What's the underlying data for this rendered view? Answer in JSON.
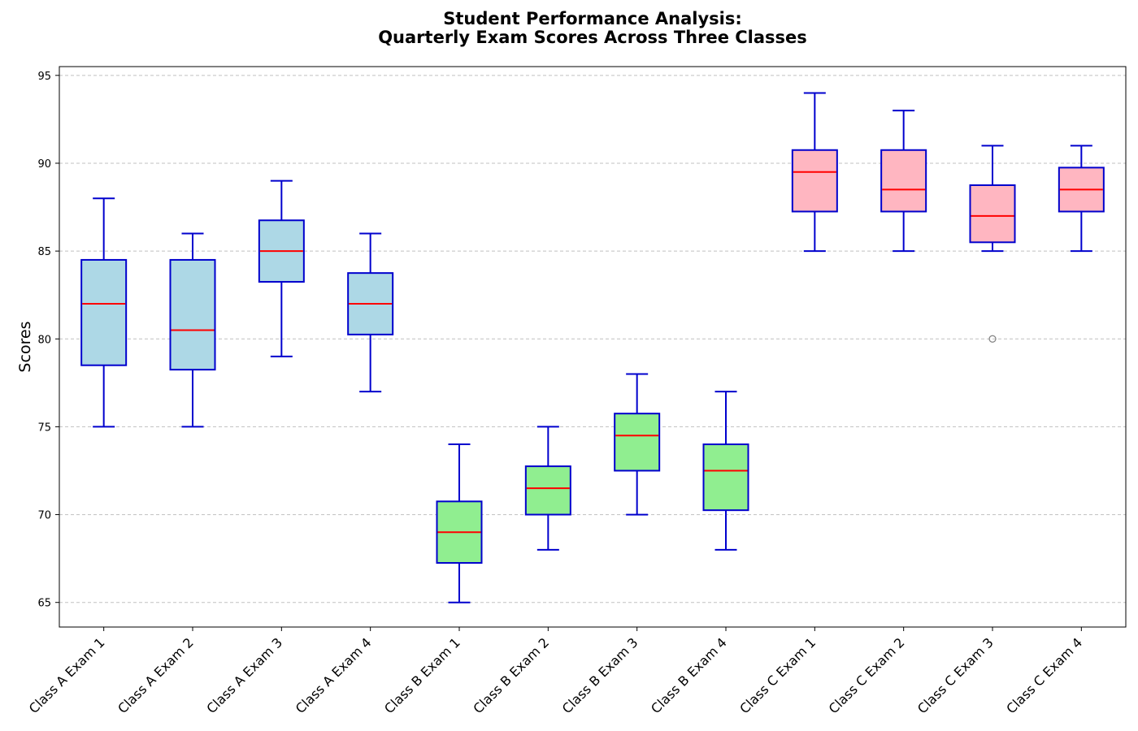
{
  "chart_data": {
    "type": "box",
    "title_lines": [
      "Student Performance Analysis:",
      "Quarterly Exam Scores Across Three Classes"
    ],
    "xlabel": "",
    "ylabel": "Scores",
    "ylim": [
      63.6,
      95.5
    ],
    "yticks": [
      65,
      70,
      75,
      80,
      85,
      90,
      95
    ],
    "grid": "horizontal dashed",
    "categories": [
      "Class A Exam 1",
      "Class A Exam 2",
      "Class A Exam 3",
      "Class A Exam 4",
      "Class B Exam 1",
      "Class B Exam 2",
      "Class B Exam 3",
      "Class B Exam 4",
      "Class C Exam 1",
      "Class C Exam 2",
      "Class C Exam 3",
      "Class C Exam 4"
    ],
    "boxes": [
      {
        "label": "Class A Exam 1",
        "group": "Class A",
        "whisker_low": 75,
        "q1": 78.5,
        "median": 82,
        "q3": 84.5,
        "whisker_high": 88,
        "outliers": []
      },
      {
        "label": "Class A Exam 2",
        "group": "Class A",
        "whisker_low": 75,
        "q1": 78.25,
        "median": 80.5,
        "q3": 84.5,
        "whisker_high": 86,
        "outliers": []
      },
      {
        "label": "Class A Exam 3",
        "group": "Class A",
        "whisker_low": 79,
        "q1": 83.25,
        "median": 85,
        "q3": 86.75,
        "whisker_high": 89,
        "outliers": []
      },
      {
        "label": "Class A Exam 4",
        "group": "Class A",
        "whisker_low": 77,
        "q1": 80.25,
        "median": 82,
        "q3": 83.75,
        "whisker_high": 86,
        "outliers": []
      },
      {
        "label": "Class B Exam 1",
        "group": "Class B",
        "whisker_low": 65,
        "q1": 67.25,
        "median": 69,
        "q3": 70.75,
        "whisker_high": 74,
        "outliers": []
      },
      {
        "label": "Class B Exam 2",
        "group": "Class B",
        "whisker_low": 68,
        "q1": 70,
        "median": 71.5,
        "q3": 72.75,
        "whisker_high": 75,
        "outliers": []
      },
      {
        "label": "Class B Exam 3",
        "group": "Class B",
        "whisker_low": 70,
        "q1": 72.5,
        "median": 74.5,
        "q3": 75.75,
        "whisker_high": 78,
        "outliers": []
      },
      {
        "label": "Class B Exam 4",
        "group": "Class B",
        "whisker_low": 68,
        "q1": 70.25,
        "median": 72.5,
        "q3": 74,
        "whisker_high": 77,
        "outliers": []
      },
      {
        "label": "Class C Exam 1",
        "group": "Class C",
        "whisker_low": 85,
        "q1": 87.25,
        "median": 89.5,
        "q3": 90.75,
        "whisker_high": 94,
        "outliers": []
      },
      {
        "label": "Class C Exam 2",
        "group": "Class C",
        "whisker_low": 85,
        "q1": 87.25,
        "median": 88.5,
        "q3": 90.75,
        "whisker_high": 93,
        "outliers": []
      },
      {
        "label": "Class C Exam 3",
        "group": "Class C",
        "whisker_low": 85,
        "q1": 85.5,
        "median": 87,
        "q3": 88.75,
        "whisker_high": 91,
        "outliers": [
          80
        ]
      },
      {
        "label": "Class C Exam 4",
        "group": "Class C",
        "whisker_low": 85,
        "q1": 87.25,
        "median": 88.5,
        "q3": 89.75,
        "whisker_high": 91,
        "outliers": []
      }
    ],
    "colors": {
      "Class A": "#add8e6",
      "Class B": "#90ee90",
      "Class C": "#ffb6c1",
      "box_edge": "#0000cd",
      "whisker": "#0000cd",
      "median": "#ff0000",
      "outlier": "#808080",
      "grid": "#c0c0c0"
    }
  }
}
